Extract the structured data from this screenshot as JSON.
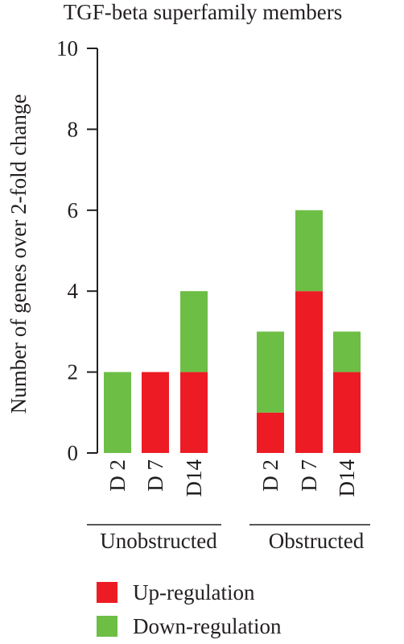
{
  "chart_data": {
    "type": "bar",
    "stacked": true,
    "title": "TGF-beta superfamily members",
    "xlabel": "",
    "ylabel": "Number of genes over 2-fold change",
    "ylim": [
      0,
      10
    ],
    "yticks": [
      "0",
      "2",
      "4",
      "6",
      "8",
      "10"
    ],
    "groups": [
      {
        "name": "Unobstructed",
        "categories": [
          "D 2",
          "D 7",
          "D14"
        ]
      },
      {
        "name": "Obstructed",
        "categories": [
          "D 2",
          "D 7",
          "D14"
        ]
      }
    ],
    "series": [
      {
        "name": "Up-regulation",
        "color": "#ed1c24",
        "values": [
          0,
          2,
          2,
          1,
          4,
          2
        ]
      },
      {
        "name": "Down-regulation",
        "color": "#6dbe45",
        "values": [
          2,
          0,
          2,
          2,
          2,
          1
        ]
      }
    ],
    "legend_position": "bottom-left",
    "grid": false
  }
}
